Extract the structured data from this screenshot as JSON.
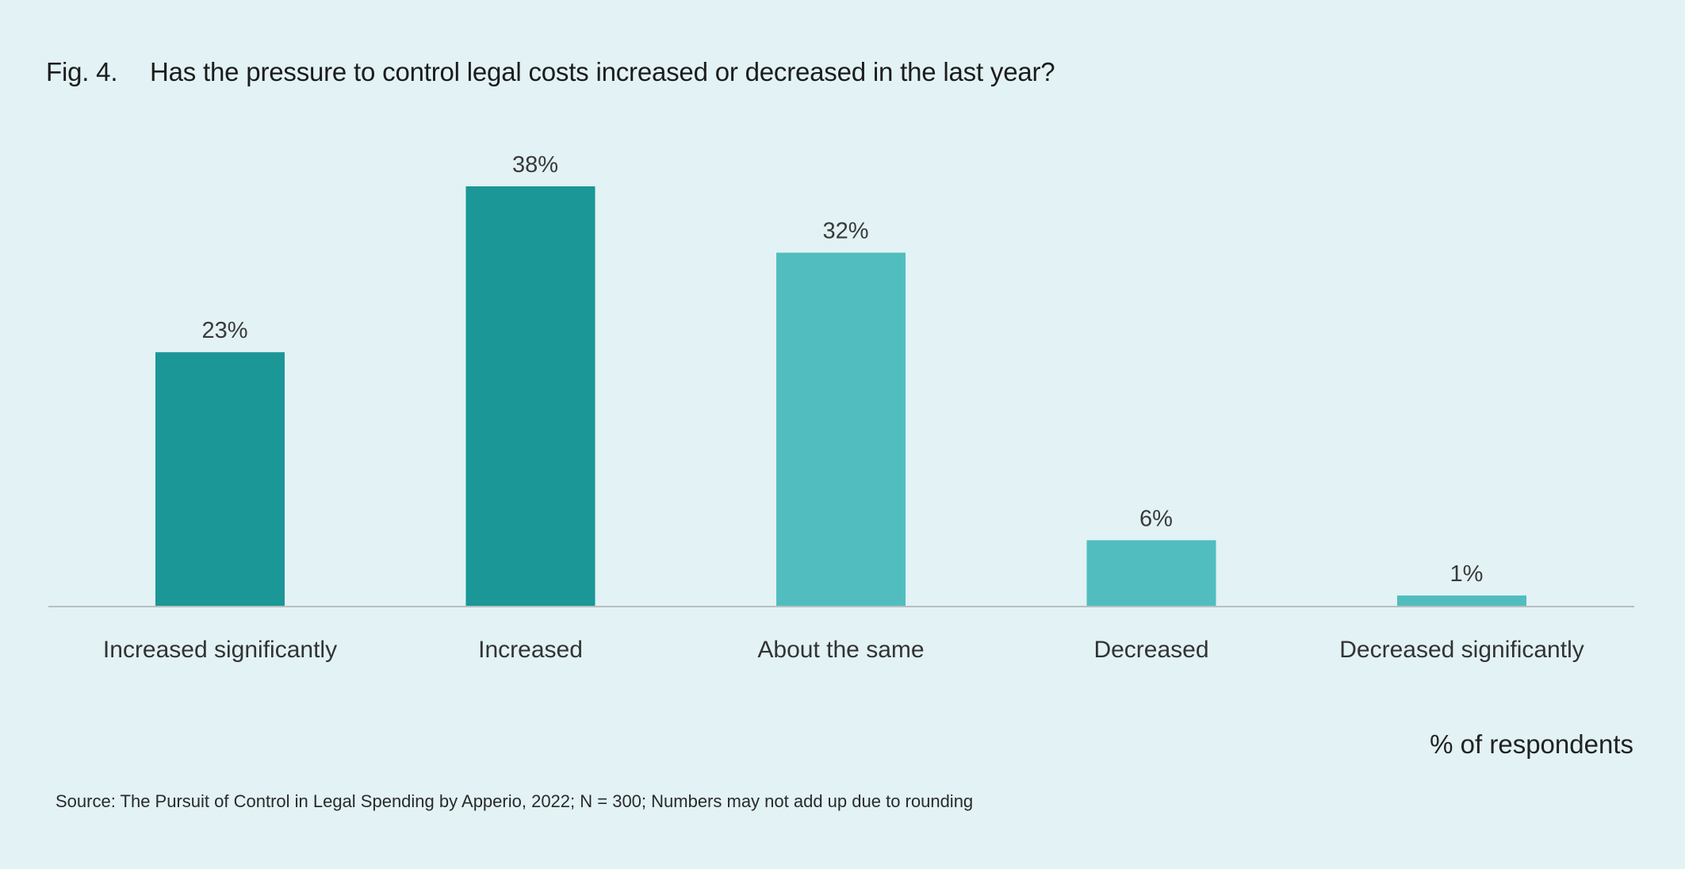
{
  "chart_data": {
    "type": "bar",
    "figure_label": "Fig. 4.",
    "title": "Has the pressure to control legal costs increased or decreased in the last year?",
    "categories": [
      "Increased significantly",
      "Increased",
      "About the same",
      "Decreased",
      "Decreased significantly"
    ],
    "values": [
      23,
      38,
      32,
      6,
      1
    ],
    "value_labels": [
      "23%",
      "38%",
      "32%",
      "6%",
      "1%"
    ],
    "colors": [
      "#1a9796",
      "#1a9796",
      "#51bdbf",
      "#51bdbf",
      "#51bdbf"
    ],
    "xlabel": "",
    "ylabel": "% of respondents",
    "ylim": [
      0,
      40
    ],
    "grid": false,
    "axis_color": "#b9bfc0",
    "source": "Source: The Pursuit of Control in Legal Spending by Apperio, 2022; N = 300; Numbers may not add up due to rounding"
  }
}
